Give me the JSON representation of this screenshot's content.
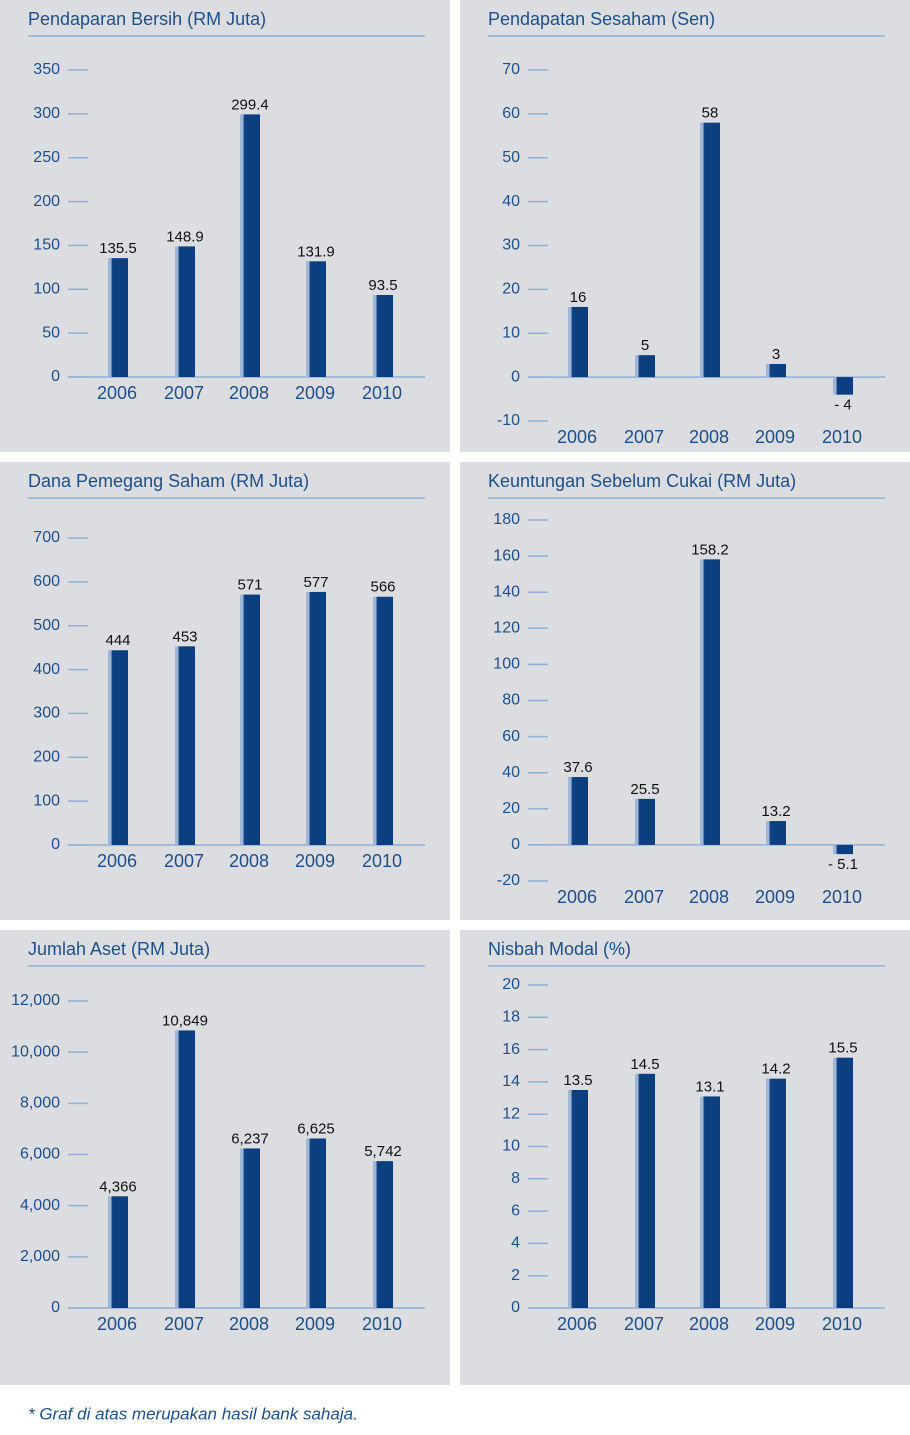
{
  "chart_data": [
    {
      "type": "bar",
      "title": "Pendaparan Bersih (RM Juta)",
      "categories": [
        "2006",
        "2007",
        "2008",
        "2009",
        "2010"
      ],
      "values": [
        135.5,
        148.9,
        299.4,
        131.9,
        93.5
      ],
      "color": "#0b3f80",
      "ylim": [
        0,
        350
      ],
      "yticks": [
        0,
        50,
        100,
        150,
        200,
        250,
        300,
        350
      ]
    },
    {
      "type": "bar",
      "title": "Pendapatan Sesaham (Sen)",
      "categories": [
        "2006",
        "2007",
        "2008",
        "2009",
        "2010"
      ],
      "values": [
        16,
        5,
        58,
        3,
        -4
      ],
      "value_labels": [
        "16",
        "5",
        "58",
        "3",
        "- 4"
      ],
      "color": "#0b3f80",
      "ylim": [
        -10,
        70
      ],
      "yticks": [
        -10,
        0,
        10,
        20,
        30,
        40,
        50,
        60,
        70
      ]
    },
    {
      "type": "bar",
      "title": "Dana Pemegang Saham (RM Juta)",
      "categories": [
        "2006",
        "2007",
        "2008",
        "2009",
        "2010"
      ],
      "values": [
        444,
        453,
        571,
        577,
        566
      ],
      "color": "#0b3f80",
      "ylim": [
        0,
        700
      ],
      "yticks": [
        0,
        100,
        200,
        300,
        400,
        500,
        600,
        700
      ]
    },
    {
      "type": "bar",
      "title": "Keuntungan Sebelum Cukai (RM Juta)",
      "categories": [
        "2006",
        "2007",
        "2008",
        "2009",
        "2010"
      ],
      "values": [
        37.6,
        25.5,
        158.2,
        13.2,
        -5.1
      ],
      "value_labels": [
        "37.6",
        "25.5",
        "158.2",
        "13.2",
        "- 5.1"
      ],
      "color": "#0b3f80",
      "ylim": [
        -20,
        180
      ],
      "yticks": [
        -20,
        0,
        20,
        40,
        60,
        80,
        100,
        120,
        140,
        160,
        180
      ]
    },
    {
      "type": "bar",
      "title": "Jumlah Aset (RM Juta)",
      "categories": [
        "2006",
        "2007",
        "2008",
        "2009",
        "2010"
      ],
      "values": [
        4366,
        10849,
        6237,
        6625,
        5742
      ],
      "value_labels": [
        "4,366",
        "10,849",
        "6,237",
        "6,625",
        "5,742"
      ],
      "color": "#0b3f80",
      "ylim": [
        0,
        12000
      ],
      "yticks": [
        0,
        {
          "value": 2000,
          "label": "2,000"
        },
        {
          "value": 4000,
          "label": "4,000"
        },
        {
          "value": 6000,
          "label": "6,000"
        },
        {
          "value": 8000,
          "label": "8,000"
        },
        {
          "value": 10000,
          "label": "10,000"
        },
        {
          "value": 12000,
          "label": "12,000"
        }
      ]
    },
    {
      "type": "bar",
      "title": "Nisbah Modal (%)",
      "categories": [
        "2006",
        "2007",
        "2008",
        "2009",
        "2010"
      ],
      "values": [
        13.5,
        14.5,
        13.1,
        14.2,
        15.5
      ],
      "color": "#0b3f80",
      "ylim": [
        0,
        20
      ],
      "yticks": [
        0,
        2,
        4,
        6,
        8,
        10,
        12,
        14,
        16,
        18,
        20
      ]
    }
  ],
  "footnote": "* Graf di atas merupakan hasil bank sahaja."
}
